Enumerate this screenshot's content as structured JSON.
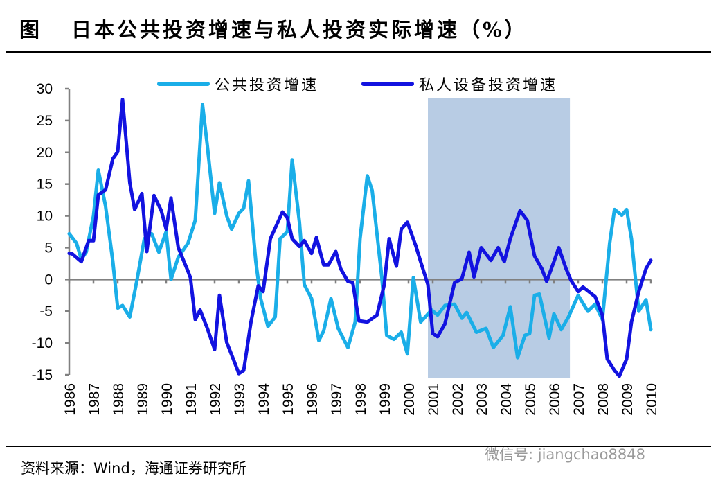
{
  "header": {
    "fig_label": "图",
    "title": "日本公共投资增速与私人投资实际增速（%）"
  },
  "footer": {
    "source": "资料来源：Wind，海通证券研究所",
    "watermark": "微信号: jiangchao8848"
  },
  "colors": {
    "public": "#1aaee8",
    "private": "#1212e0",
    "shade": "#b8cce4",
    "axis": "#808080"
  },
  "chart_data": {
    "type": "line",
    "title": "日本公共投资增速与私人投资实际增速（%）",
    "xlabel": "",
    "ylabel": "%",
    "ylim": [
      -15,
      30
    ],
    "xlim": [
      1986,
      2010
    ],
    "yticks": [
      30,
      25,
      20,
      15,
      10,
      5,
      0,
      -5,
      -10,
      -15
    ],
    "xticks": [
      1986,
      1987,
      1988,
      1989,
      1990,
      1991,
      1992,
      1993,
      1994,
      1995,
      1996,
      1997,
      1998,
      1999,
      2000,
      2001,
      2002,
      2003,
      2004,
      2005,
      2006,
      2007,
      2008,
      2009,
      2010
    ],
    "legend": "top",
    "shaded_period": [
      2000.8,
      2006.66
    ],
    "series": [
      {
        "name": "公共投资增速",
        "color": "#1aaee8",
        "points": [
          [
            1986.0,
            7.2
          ],
          [
            1986.3,
            5.7
          ],
          [
            1986.5,
            3.2
          ],
          [
            1986.7,
            4.3
          ],
          [
            1987.0,
            10
          ],
          [
            1987.2,
            17.2
          ],
          [
            1987.5,
            11.5
          ],
          [
            1987.8,
            2.8
          ],
          [
            1988.0,
            -4.5
          ],
          [
            1988.2,
            -4.1
          ],
          [
            1988.5,
            -5.9
          ],
          [
            1988.8,
            0
          ],
          [
            1989.1,
            6.4
          ],
          [
            1989.4,
            7.2
          ],
          [
            1989.7,
            4.3
          ],
          [
            1990.0,
            7.5
          ],
          [
            1990.2,
            0
          ],
          [
            1990.5,
            3.5
          ],
          [
            1990.9,
            5.7
          ],
          [
            1991.2,
            9.3
          ],
          [
            1991.5,
            27.5
          ],
          [
            1991.7,
            21
          ],
          [
            1992.0,
            10.4
          ],
          [
            1992.2,
            15.2
          ],
          [
            1992.5,
            10
          ],
          [
            1992.7,
            7.9
          ],
          [
            1993.0,
            10.4
          ],
          [
            1993.2,
            11.2
          ],
          [
            1993.4,
            15.5
          ],
          [
            1993.7,
            2.8
          ],
          [
            1993.9,
            -3
          ],
          [
            1994.2,
            -7.4
          ],
          [
            1994.5,
            -5.9
          ],
          [
            1994.7,
            6.4
          ],
          [
            1995.0,
            7.5
          ],
          [
            1995.2,
            18.8
          ],
          [
            1995.5,
            9
          ],
          [
            1995.7,
            -0.8
          ],
          [
            1996.0,
            -3
          ],
          [
            1996.3,
            -9.6
          ],
          [
            1996.5,
            -8.1
          ],
          [
            1996.8,
            -3
          ],
          [
            1997.1,
            -7.7
          ],
          [
            1997.5,
            -10.7
          ],
          [
            1997.8,
            -6.7
          ],
          [
            1998.0,
            6.4
          ],
          [
            1998.3,
            16.3
          ],
          [
            1998.5,
            14
          ],
          [
            1998.9,
            0.3
          ],
          [
            1999.1,
            -8.8
          ],
          [
            1999.4,
            -9.4
          ],
          [
            1999.7,
            -8.3
          ],
          [
            1999.95,
            -11.7
          ],
          [
            2000.2,
            0.3
          ],
          [
            2000.5,
            -6.7
          ],
          [
            2000.95,
            -4.8
          ],
          [
            2001.2,
            -5.6
          ],
          [
            2001.5,
            -4.1
          ],
          [
            2001.9,
            -3.9
          ],
          [
            2002.2,
            -6.1
          ],
          [
            2002.4,
            -5.2
          ],
          [
            2002.8,
            -8.3
          ],
          [
            2003.2,
            -7.7
          ],
          [
            2003.5,
            -10.7
          ],
          [
            2003.9,
            -8.8
          ],
          [
            2004.2,
            -4.3
          ],
          [
            2004.5,
            -12.3
          ],
          [
            2004.8,
            -8.8
          ],
          [
            2005.0,
            -8.5
          ],
          [
            2005.2,
            -2.5
          ],
          [
            2005.4,
            -2.3
          ],
          [
            2005.8,
            -9.2
          ],
          [
            2006.0,
            -5.4
          ],
          [
            2006.3,
            -7.9
          ],
          [
            2006.6,
            -5.9
          ],
          [
            2007.0,
            -2.5
          ],
          [
            2007.4,
            -5
          ],
          [
            2007.7,
            -3.9
          ],
          [
            2008.0,
            -6.3
          ],
          [
            2008.3,
            5.7
          ],
          [
            2008.5,
            11
          ],
          [
            2008.8,
            10.1
          ],
          [
            2009.0,
            11
          ],
          [
            2009.2,
            6.4
          ],
          [
            2009.5,
            -5
          ],
          [
            2009.8,
            -3.2
          ],
          [
            2010.0,
            -7.9
          ]
        ]
      },
      {
        "name": "私人设备投资增速",
        "color": "#1212e0",
        "points": [
          [
            1986.0,
            4.1
          ],
          [
            1986.1,
            4.1
          ],
          [
            1986.5,
            2.8
          ],
          [
            1986.8,
            6.1
          ],
          [
            1987.0,
            6.1
          ],
          [
            1987.2,
            13.3
          ],
          [
            1987.5,
            14.1
          ],
          [
            1987.8,
            19
          ],
          [
            1988.0,
            20.1
          ],
          [
            1988.2,
            28.3
          ],
          [
            1988.5,
            15.2
          ],
          [
            1988.7,
            11
          ],
          [
            1989.0,
            13.5
          ],
          [
            1989.2,
            4.4
          ],
          [
            1989.5,
            13.2
          ],
          [
            1989.8,
            10.8
          ],
          [
            1990.0,
            7.9
          ],
          [
            1990.2,
            12.8
          ],
          [
            1990.5,
            5
          ],
          [
            1990.9,
            1.3
          ],
          [
            1991.0,
            0.3
          ],
          [
            1991.2,
            -6.3
          ],
          [
            1991.4,
            -4.8
          ],
          [
            1991.7,
            -7.7
          ],
          [
            1992.0,
            -11
          ],
          [
            1992.2,
            -2.5
          ],
          [
            1992.5,
            -9.9
          ],
          [
            1992.8,
            -12.8
          ],
          [
            1993.0,
            -14.8
          ],
          [
            1993.2,
            -14.3
          ],
          [
            1993.5,
            -6.7
          ],
          [
            1993.8,
            -1
          ],
          [
            1994.0,
            -1.9
          ],
          [
            1994.3,
            6.4
          ],
          [
            1994.8,
            10.6
          ],
          [
            1995.0,
            9.7
          ],
          [
            1995.2,
            6.4
          ],
          [
            1995.5,
            5.2
          ],
          [
            1995.7,
            6.1
          ],
          [
            1996.0,
            4.1
          ],
          [
            1996.2,
            6.6
          ],
          [
            1996.5,
            2.3
          ],
          [
            1996.7,
            2.3
          ],
          [
            1997.0,
            4.4
          ],
          [
            1997.2,
            1.7
          ],
          [
            1997.5,
            -0.3
          ],
          [
            1997.7,
            -0.5
          ],
          [
            1997.95,
            -6.5
          ],
          [
            1998.3,
            -6.7
          ],
          [
            1998.7,
            -5.6
          ],
          [
            1999.0,
            -0.8
          ],
          [
            1999.2,
            6.4
          ],
          [
            1999.5,
            2.1
          ],
          [
            1999.7,
            7.9
          ],
          [
            1999.95,
            9
          ],
          [
            2000.3,
            5.3
          ],
          [
            2000.5,
            2.8
          ],
          [
            2000.8,
            -0.8
          ],
          [
            2001.0,
            -8.5
          ],
          [
            2001.2,
            -9
          ],
          [
            2001.5,
            -7
          ],
          [
            2001.9,
            -0.5
          ],
          [
            2002.2,
            0.1
          ],
          [
            2002.5,
            4.3
          ],
          [
            2002.7,
            0.4
          ],
          [
            2003.0,
            5
          ],
          [
            2003.4,
            3
          ],
          [
            2003.7,
            5
          ],
          [
            2003.95,
            2.8
          ],
          [
            2004.2,
            6.4
          ],
          [
            2004.6,
            10.8
          ],
          [
            2004.9,
            9.3
          ],
          [
            2005.2,
            3.7
          ],
          [
            2005.5,
            1.7
          ],
          [
            2005.7,
            -0.3
          ],
          [
            2006.0,
            2.8
          ],
          [
            2006.2,
            5
          ],
          [
            2006.5,
            1.7
          ],
          [
            2006.7,
            -0.1
          ],
          [
            2007.0,
            -1.9
          ],
          [
            2007.2,
            -1.2
          ],
          [
            2007.5,
            -2.1
          ],
          [
            2007.7,
            -2.7
          ],
          [
            2008.0,
            -5.6
          ],
          [
            2008.2,
            -12.5
          ],
          [
            2008.5,
            -14.3
          ],
          [
            2008.7,
            -15.2
          ],
          [
            2009.0,
            -12.5
          ],
          [
            2009.2,
            -6.7
          ],
          [
            2009.5,
            -1.9
          ],
          [
            2009.8,
            1.7
          ],
          [
            2010.0,
            3
          ]
        ]
      }
    ]
  }
}
